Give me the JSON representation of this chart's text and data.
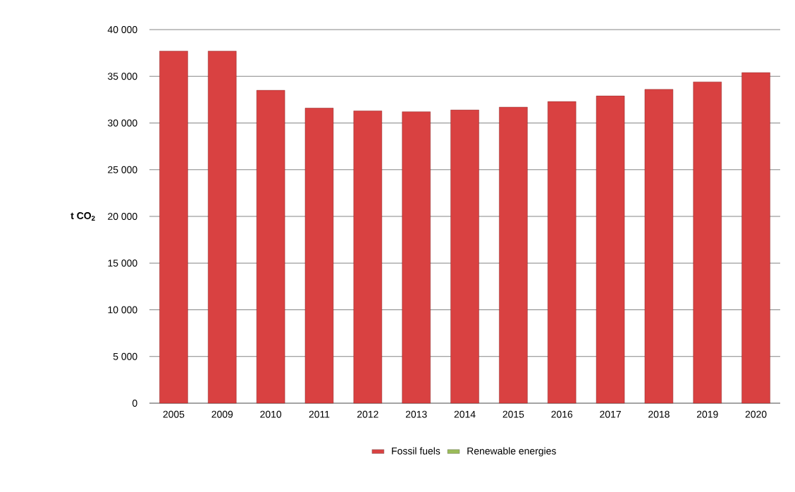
{
  "chart_data": {
    "type": "bar",
    "ylabel": "t CO$_{2}$",
    "categories": [
      "2005",
      "2009",
      "2010",
      "2011",
      "2012",
      "2013",
      "2014",
      "2015",
      "2016",
      "2017",
      "2018",
      "2019",
      "2020"
    ],
    "series": [
      {
        "name": "Fossil fuels",
        "color": "#d94141",
        "values": [
          37700,
          37700,
          33500,
          31600,
          31300,
          31200,
          31400,
          31700,
          32300,
          32900,
          33600,
          34400,
          35400
        ]
      },
      {
        "name": "Renewable energies",
        "color": "#9bbb59",
        "values": [
          null,
          null,
          null,
          null,
          null,
          null,
          null,
          null,
          null,
          null,
          null,
          null,
          null
        ]
      }
    ],
    "ylim": [
      0,
      40000
    ],
    "yticks": [
      {
        "value": 0,
        "label": "0"
      },
      {
        "value": 5000,
        "label": "5 000"
      },
      {
        "value": 10000,
        "label": "10 000"
      },
      {
        "value": 15000,
        "label": "15 000"
      },
      {
        "value": 20000,
        "label": "20 000"
      },
      {
        "value": 25000,
        "label": "25 000"
      },
      {
        "value": 30000,
        "label": "30 000"
      },
      {
        "value": 35000,
        "label": "35 000"
      },
      {
        "value": 40000,
        "label": "40 000"
      }
    ],
    "grid": "y",
    "legend": "bottom"
  }
}
